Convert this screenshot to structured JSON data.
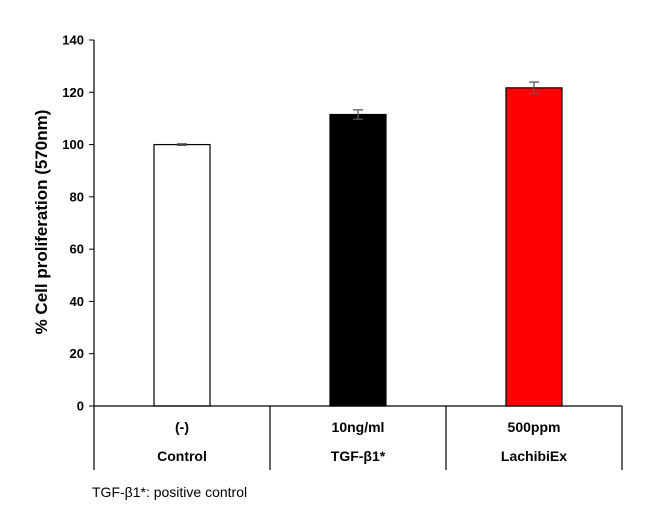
{
  "chart_data": {
    "type": "bar",
    "title": "",
    "xlabel": "",
    "ylabel": "% Cell proliferation (570nm)",
    "ylim": [
      0,
      140
    ],
    "yticks": [
      0,
      20,
      40,
      60,
      80,
      100,
      120,
      140
    ],
    "grid": false,
    "categories": [
      {
        "line1": "(-)",
        "line2": "Control"
      },
      {
        "line1": "10ng/ml",
        "line2": "TGF-β1*"
      },
      {
        "line1": "500ppm",
        "line2": "LachibiEx"
      }
    ],
    "values": [
      100,
      111.5,
      121.7
    ],
    "errors": [
      0.3,
      1.8,
      2.2
    ],
    "bar_colors": [
      "#ffffff",
      "#000000",
      "#ff0000"
    ],
    "bar_edge_color": "#000000",
    "error_bar_color": "#595959"
  },
  "footnote": "TGF-β1*: positive control"
}
